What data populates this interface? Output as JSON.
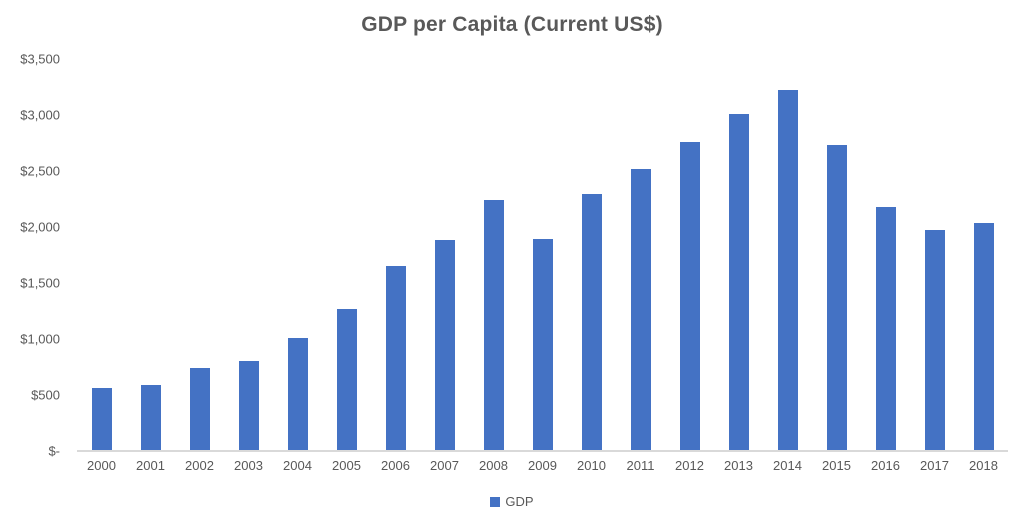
{
  "chart_data": {
    "type": "bar",
    "title": "GDP per Capita (Current US$)",
    "categories": [
      "2000",
      "2001",
      "2002",
      "2003",
      "2004",
      "2005",
      "2006",
      "2007",
      "2008",
      "2009",
      "2010",
      "2011",
      "2012",
      "2013",
      "2014",
      "2015",
      "2016",
      "2017",
      "2018"
    ],
    "series": [
      {
        "name": "GDP",
        "values": [
          565,
          585,
          740,
          800,
          1010,
          1265,
          1655,
          1880,
          2240,
          1890,
          2295,
          2520,
          2760,
          3010,
          3220,
          2735,
          2175,
          1970,
          2035
        ]
      }
    ],
    "xlabel": "",
    "ylabel": "",
    "ylim": [
      0,
      3500
    ],
    "y_ticks": [
      {
        "label": "$-",
        "value": 0
      },
      {
        "label": "$500",
        "value": 500
      },
      {
        "label": "$1,000",
        "value": 1000
      },
      {
        "label": "$1,500",
        "value": 1500
      },
      {
        "label": "$2,000",
        "value": 2000
      },
      {
        "label": "$2,500",
        "value": 2500
      },
      {
        "label": "$3,000",
        "value": 3000
      },
      {
        "label": "$3,500",
        "value": 3500
      }
    ],
    "grid": false,
    "legend_position": "bottom",
    "colors": {
      "bar": "#4472C4",
      "axis_line": "#D9D9D9",
      "text": "#595959"
    }
  }
}
